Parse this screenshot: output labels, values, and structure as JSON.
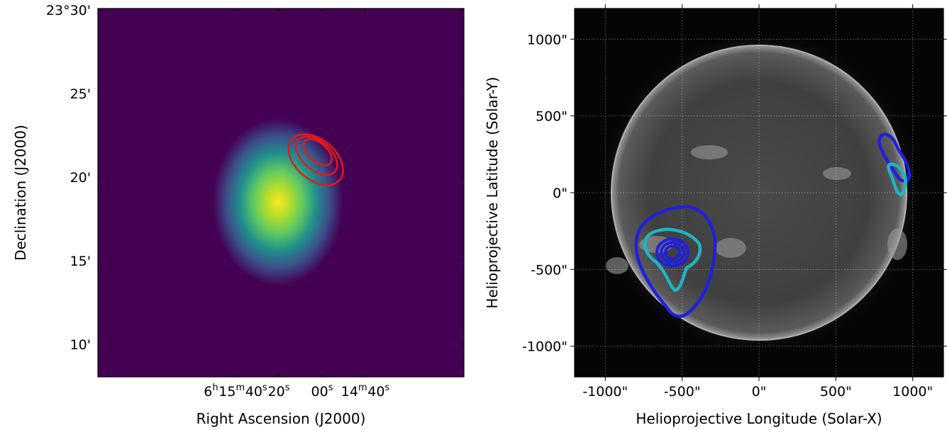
{
  "chart_data": [
    {
      "type": "heatmap",
      "panel": "left",
      "colormap": "viridis",
      "xlabel": "Right Ascension (J2000)",
      "ylabel": "Declination (J2000)",
      "x_ticks": [
        {
          "h": "6",
          "m": "15",
          "s": "40",
          "ra_sec": 22540
        },
        {
          "h": "",
          "m": "",
          "s": "20",
          "ra_sec": 22520
        },
        {
          "h": "",
          "m": "",
          "s": "00",
          "ra_sec": 22500
        },
        {
          "h": "",
          "m": "14",
          "s": "40",
          "ra_sec": 22480
        }
      ],
      "y_ticks": [
        {
          "label": "23°30'",
          "dec_arcmin": 30
        },
        {
          "label": "25'",
          "dec_arcmin": 25
        },
        {
          "label": "20'",
          "dec_arcmin": 20
        },
        {
          "label": "15'",
          "dec_arcmin": 15
        },
        {
          "label": "10'",
          "dec_arcmin": 10
        }
      ],
      "peak": {
        "ra_sec": 22512,
        "dec_arcmin": 18.4
      },
      "contours": {
        "color": "#e31a1c",
        "levels": 3,
        "center_ra_sec": 22503,
        "center_dec_arcmin": 21.4
      }
    },
    {
      "type": "image",
      "panel": "right",
      "colormap": "gray",
      "xlabel": "Helioprojective Longitude (Solar-X)",
      "ylabel": "Helioprojective Latitude (Solar-Y)",
      "x_ticks": [
        "-1000\"",
        "-500\"",
        "0\"",
        "500\"",
        "1000\""
      ],
      "y_ticks": [
        "1000\"",
        "500\"",
        "0\"",
        "-500\"",
        "-1000\""
      ],
      "xlim": [
        -1200,
        1200
      ],
      "ylim": [
        -1200,
        1200
      ],
      "grid": true,
      "contours": [
        {
          "color": "#1f1fe0",
          "region": "south-east",
          "center": [
            -600,
            -380
          ]
        },
        {
          "color": "#1fb4c4",
          "region": "south-east",
          "center": [
            -590,
            -380
          ]
        },
        {
          "color": "#1f1fe0",
          "region": "west-limb",
          "center": [
            900,
            230
          ]
        },
        {
          "color": "#1fb4c4",
          "region": "west-limb",
          "center": [
            930,
            90
          ]
        }
      ]
    }
  ]
}
